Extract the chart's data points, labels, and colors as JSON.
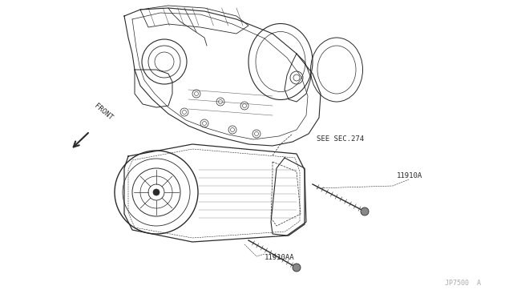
{
  "bg_color": "#ffffff",
  "line_color": "#2a2a2a",
  "light_line_color": "#555555",
  "watermark_color": "#aaaaaa",
  "front_arrow_text": "FRONT",
  "see_sec_text": "SEE SEC.274",
  "label1": "11910A",
  "label2": "11910AA",
  "watermark": "JP7500  A",
  "figsize": [
    6.4,
    3.72
  ],
  "dpi": 100
}
